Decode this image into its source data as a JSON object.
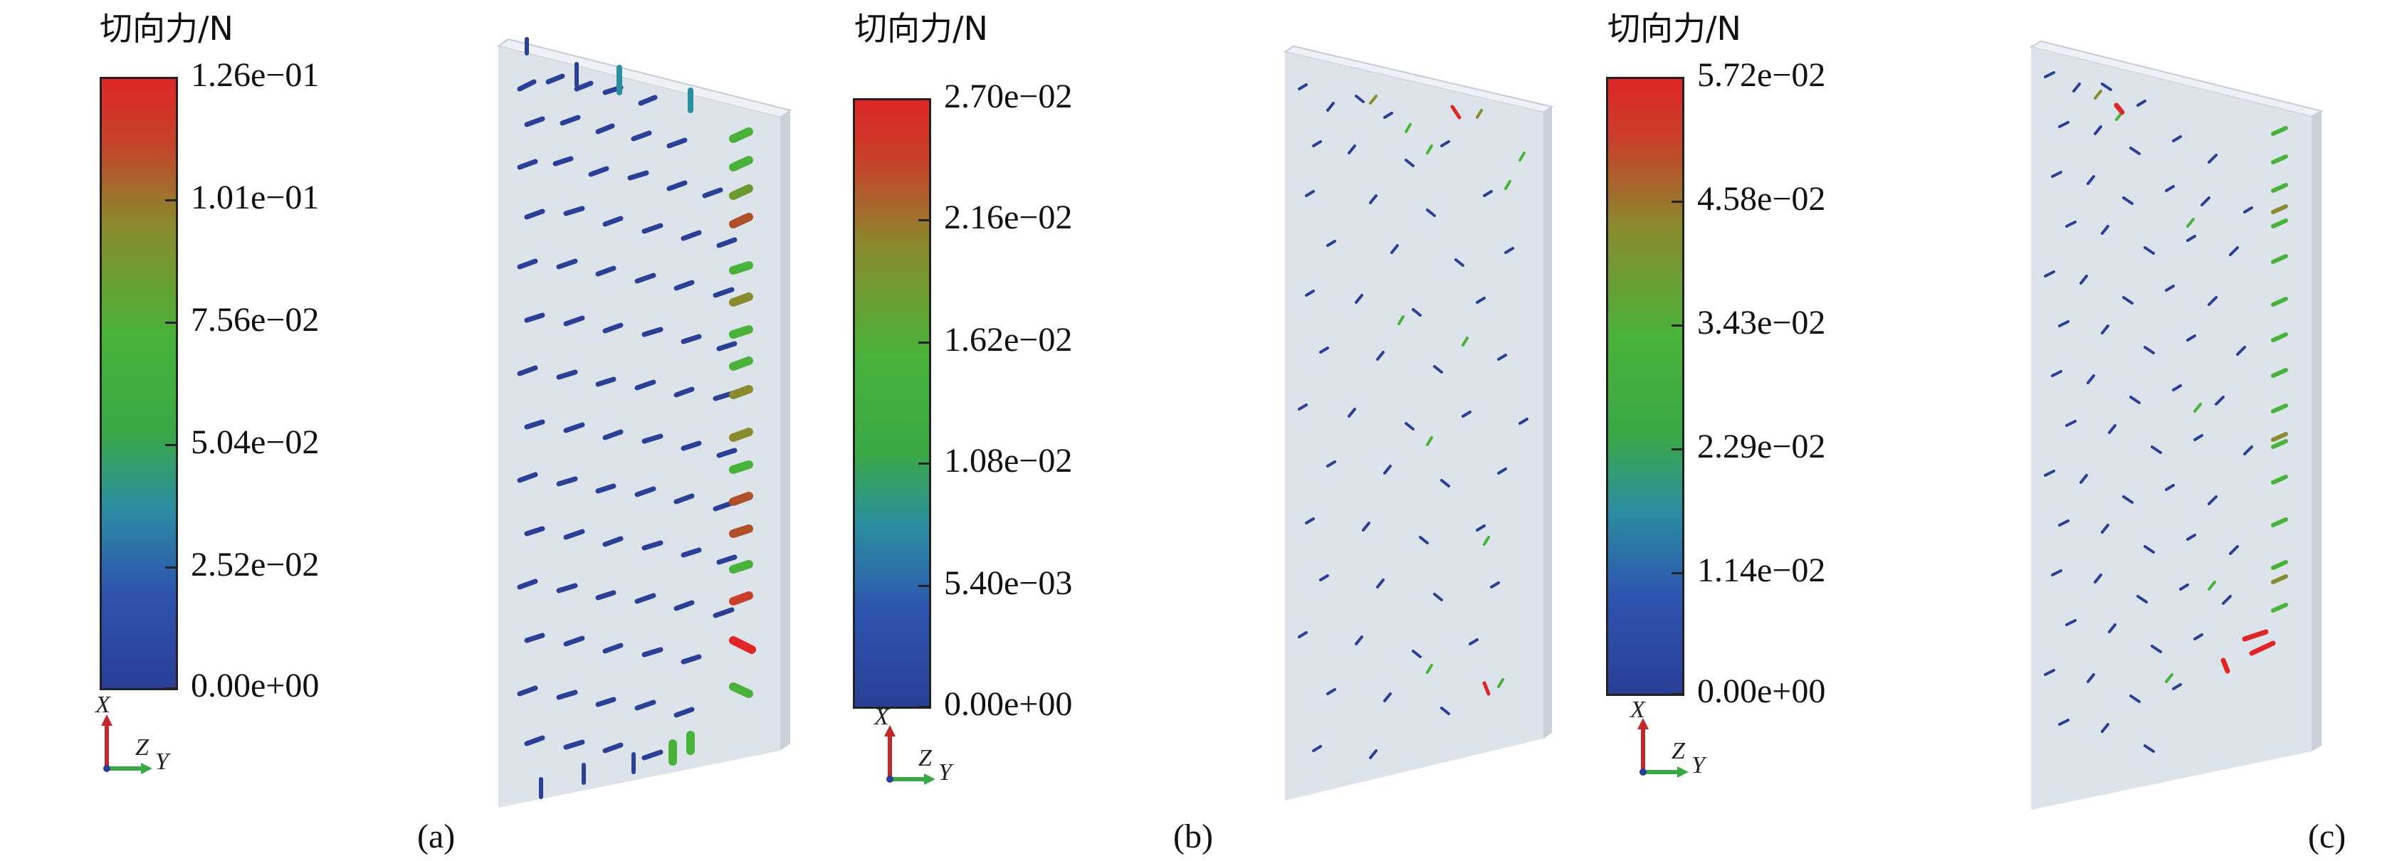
{
  "panels": [
    {
      "label": "(a)",
      "colorbar": {
        "title": "切向力/N",
        "ticks": [
          "1.26e−01",
          "1.01e−01",
          "7.56e−02",
          "5.04e−02",
          "2.52e−02",
          "0.00e+00"
        ]
      },
      "axes": {
        "x": "X",
        "z": "Z",
        "y": "Y"
      }
    },
    {
      "label": "(b)",
      "colorbar": {
        "title": "切向力/N",
        "ticks": [
          "2.70e−02",
          "2.16e−02",
          "1.62e−02",
          "1.08e−02",
          "5.40e−03",
          "0.00e+00"
        ]
      },
      "axes": {
        "x": "X",
        "z": "Z",
        "y": "Y"
      }
    },
    {
      "label": "(c)",
      "colorbar": {
        "title": "切向力/N",
        "ticks": [
          "5.72e−02",
          "4.58e−02",
          "3.43e−02",
          "2.29e−02",
          "1.14e−02",
          "0.00e+00"
        ]
      },
      "axes": {
        "x": "X",
        "z": "Z",
        "y": "Y"
      }
    }
  ],
  "colors": {
    "low": "#2a3f96",
    "mid_low": "#2c8fa0",
    "mid": "#49b23a",
    "mid_high": "#8a8a2e",
    "high": "#de2626",
    "plate_face": "#dde3ea",
    "plate_edge": "#c5ccd6"
  }
}
